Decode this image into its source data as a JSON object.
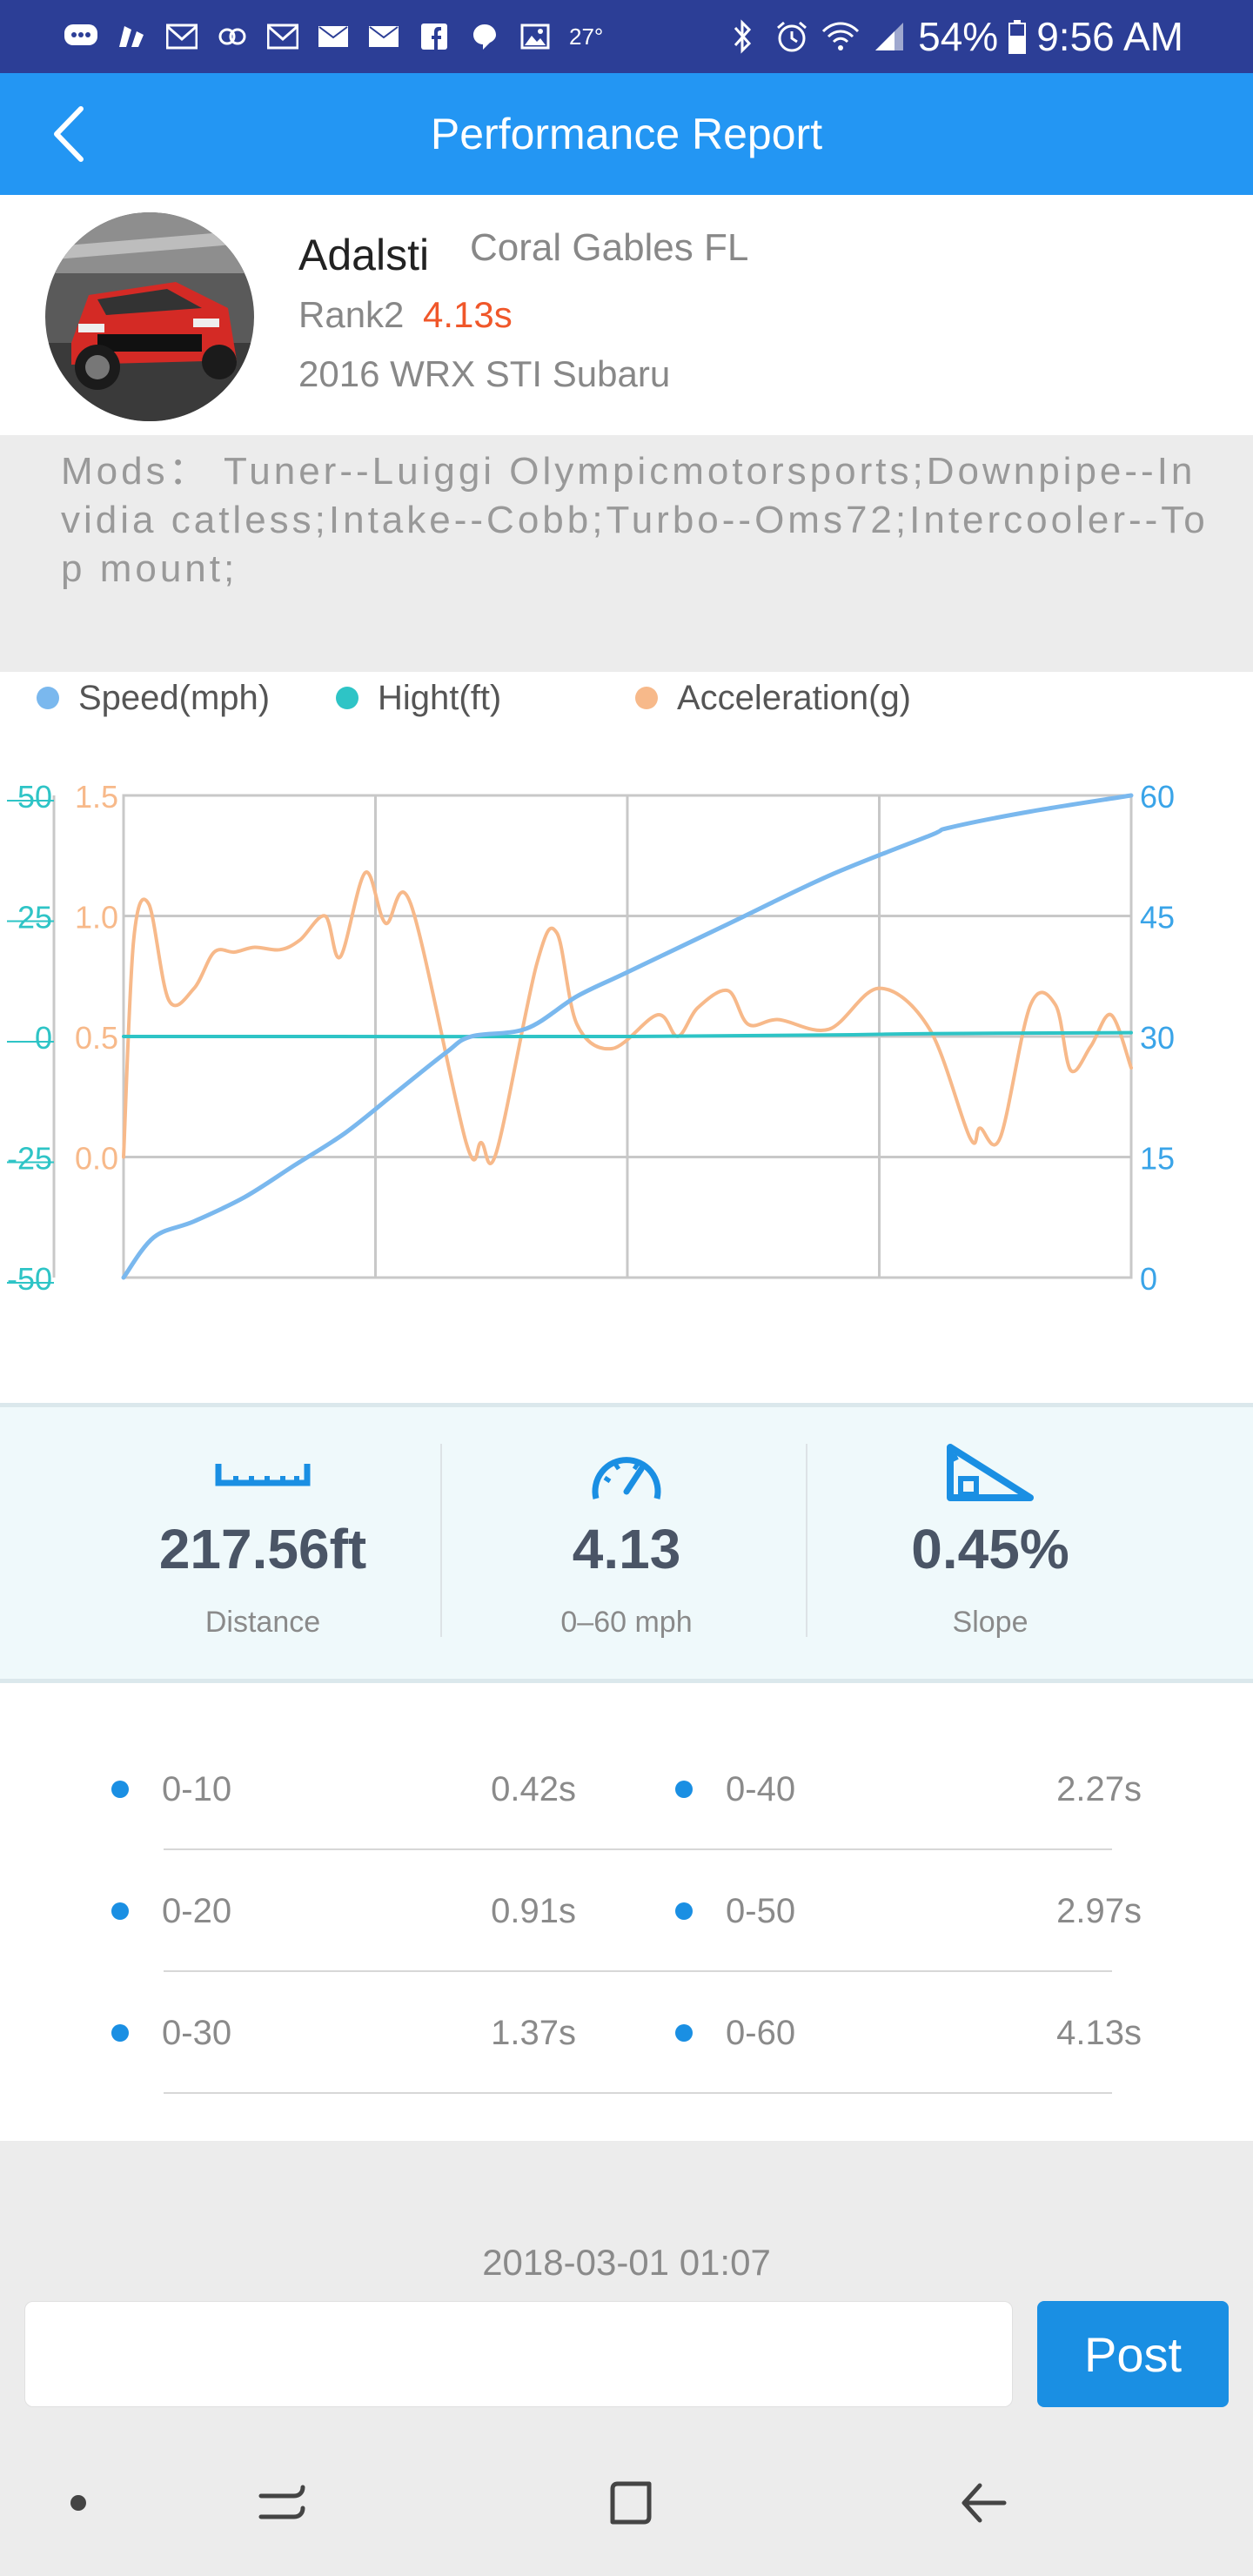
{
  "status_bar": {
    "temperature": "27°",
    "battery": "54%",
    "time": "9:56 AM",
    "icons_left": [
      "messages-icon",
      "slack-icon",
      "gmail-icon",
      "link-icon",
      "gmail-icon",
      "mail-icon",
      "mail-icon",
      "facebook-icon",
      "chat-icon",
      "gallery-icon"
    ],
    "icons_right": [
      "bluetooth-icon",
      "alarm-icon",
      "wifi-icon",
      "signal-icon",
      "battery-icon"
    ]
  },
  "header": {
    "title": "Performance Report",
    "back_icon": "back-chevron-icon"
  },
  "profile": {
    "name": "Adalsti",
    "location": "Coral Gables FL",
    "rank": "Rank2",
    "rank_time": "4.13s",
    "car": "2016 WRX STI Subaru"
  },
  "mods": {
    "text": "Mods： Tuner--Luiggi Olympicmotorsports;Downpipe--Invidia  catless;Intake--Cobb;Turbo--Oms72;Intercooler--Top mount;"
  },
  "colors": {
    "speed": "#7ab8ee",
    "height": "#2ec4c6",
    "accel": "#f7b98a",
    "accent": "#1a8fe3",
    "rank_time": "#f0572a"
  },
  "chart_data": {
    "type": "line",
    "legend": [
      "Speed(mph)",
      "Hight(ft)",
      "Acceleration(g)"
    ],
    "axes": {
      "height_ticks": [
        "50",
        "25",
        "0",
        "-25",
        "-50"
      ],
      "accel_ticks": [
        "1.5",
        "1.0",
        "0.5",
        "0.0"
      ],
      "speed_ticks": [
        "60",
        "45",
        "30",
        "15",
        "0"
      ],
      "speed_range": [
        0,
        60
      ],
      "height_range": [
        -50,
        50
      ],
      "accel_range": [
        -0.5,
        1.5
      ]
    },
    "grid": true,
    "series": [
      {
        "name": "Speed(mph)",
        "x": [
          0,
          0.03,
          0.07,
          0.12,
          0.17,
          0.22,
          0.27,
          0.32,
          0.345,
          0.4,
          0.45,
          0.5,
          0.6,
          0.7,
          0.8,
          0.82,
          0.9,
          1.0
        ],
        "values": [
          0,
          5,
          7,
          10,
          14,
          18,
          23,
          28,
          30,
          31,
          35,
          38,
          44,
          50,
          55,
          56,
          58,
          61
        ]
      },
      {
        "name": "Hight(ft)",
        "x": [
          0,
          0.1,
          0.5,
          0.7,
          0.8,
          1.0
        ],
        "values": [
          0,
          0,
          0,
          0.3,
          0.6,
          0.8
        ]
      },
      {
        "name": "Acceleration(g)",
        "x": [
          0,
          0.01,
          0.025,
          0.045,
          0.07,
          0.09,
          0.11,
          0.13,
          0.155,
          0.175,
          0.2,
          0.215,
          0.24,
          0.26,
          0.285,
          0.34,
          0.355,
          0.37,
          0.41,
          0.43,
          0.45,
          0.485,
          0.53,
          0.55,
          0.57,
          0.6,
          0.62,
          0.65,
          0.7,
          0.75,
          0.8,
          0.84,
          0.85,
          0.87,
          0.9,
          0.925,
          0.94,
          0.96,
          0.98,
          1.0
        ],
        "values": [
          0.0,
          0.9,
          1.05,
          0.65,
          0.7,
          0.85,
          0.85,
          0.87,
          0.86,
          0.9,
          1.0,
          0.83,
          1.18,
          0.97,
          1.05,
          0.06,
          0.06,
          0.02,
          0.8,
          0.93,
          0.55,
          0.45,
          0.59,
          0.5,
          0.62,
          0.69,
          0.55,
          0.57,
          0.53,
          0.7,
          0.53,
          0.08,
          0.12,
          0.08,
          0.63,
          0.63,
          0.36,
          0.46,
          0.59,
          0.37
        ]
      }
    ]
  },
  "stats": [
    {
      "value": "217.56ft",
      "label": "Distance",
      "icon": "ruler-icon"
    },
    {
      "value": "4.13",
      "label": "0–60 mph",
      "icon": "speedometer-icon"
    },
    {
      "value": "0.45%",
      "label": "Slope",
      "icon": "slope-icon"
    }
  ],
  "splits": [
    {
      "label": "0-10",
      "value": "0.42s"
    },
    {
      "label": "0-40",
      "value": "2.27s"
    },
    {
      "label": "0-20",
      "value": "0.91s"
    },
    {
      "label": "0-50",
      "value": "2.97s"
    },
    {
      "label": "0-30",
      "value": "1.37s"
    },
    {
      "label": "0-60",
      "value": "4.13s"
    }
  ],
  "date": "2018-03-01 01:07",
  "comment": {
    "placeholder": "",
    "post_label": "Post"
  },
  "nav": [
    "dot-icon",
    "recent-apps-icon",
    "home-icon",
    "back-arrow-icon"
  ]
}
